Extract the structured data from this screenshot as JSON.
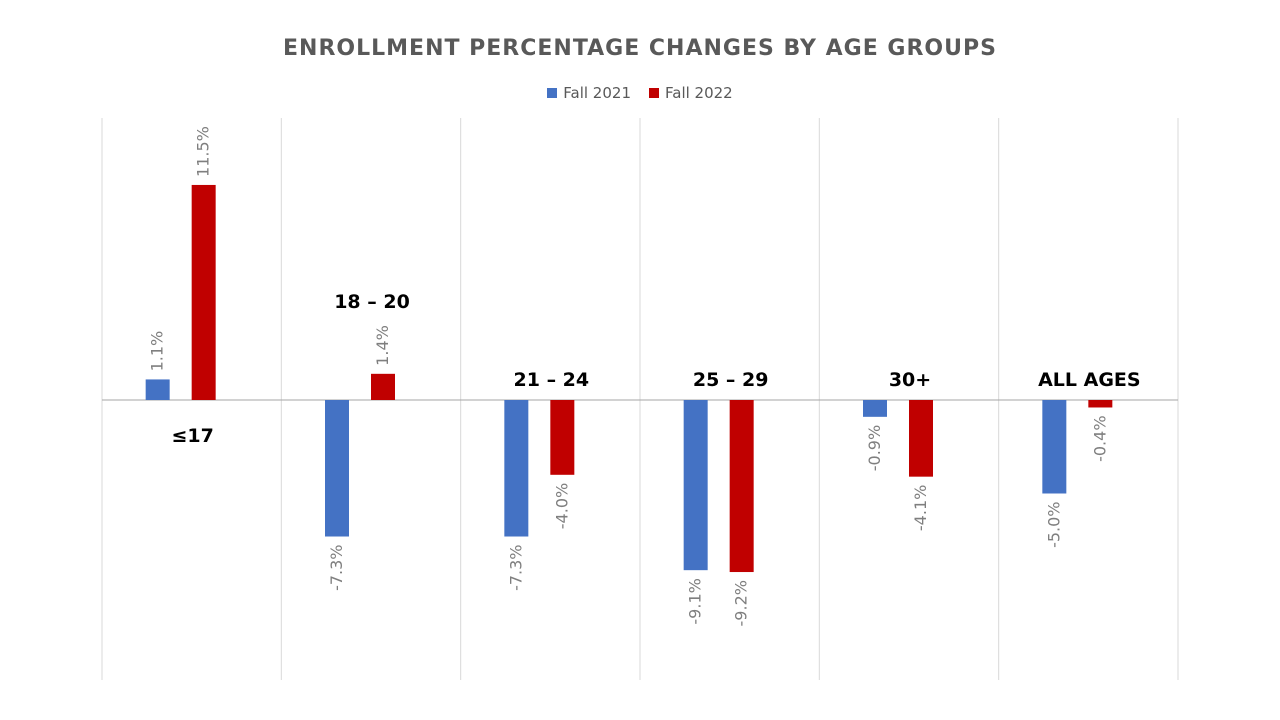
{
  "chart_data": {
    "type": "bar",
    "title": "ENROLLMENT PERCENTAGE CHANGES BY AGE GROUPS",
    "categories": [
      "≤17",
      "18 – 20",
      "21 – 24",
      "25 – 29",
      "30+",
      "ALL AGES"
    ],
    "series": [
      {
        "name": "Fall 2021",
        "color": "#4472C4",
        "values": [
          1.1,
          -7.3,
          -7.3,
          -9.1,
          -0.9,
          -5.0
        ],
        "labels": [
          "1.1%",
          "-7.3%",
          "-7.3%",
          "-9.1%",
          "-0.9%",
          "-5.0%"
        ]
      },
      {
        "name": "Fall 2022",
        "color": "#C00000",
        "values": [
          11.5,
          1.4,
          -4.0,
          -9.2,
          -4.1,
          -0.4
        ],
        "labels": [
          "11.5%",
          "1.4%",
          "-4.0%",
          "-9.2%",
          "-4.1%",
          "-0.4%"
        ]
      }
    ],
    "ylim": [
      -15,
      15
    ],
    "grid": "vertical",
    "legend": "top"
  }
}
